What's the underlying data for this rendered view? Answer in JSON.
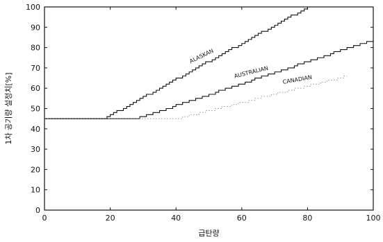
{
  "chart_data": {
    "type": "line",
    "title": "",
    "xlabel": "급탄량",
    "ylabel": "1차 공기량 설정치[%]",
    "xlim": [
      0,
      100
    ],
    "ylim": [
      0,
      100
    ],
    "x_ticks": [
      "0",
      "20",
      "40",
      "60",
      "80",
      "100"
    ],
    "y_ticks": [
      "0",
      "10",
      "20",
      "30",
      "40",
      "50",
      "60",
      "70",
      "80",
      "90",
      "100"
    ],
    "grid": false,
    "step_style": true,
    "series": [
      {
        "name": "ALASKAN",
        "color": "#111111",
        "x": [
          0,
          18,
          80
        ],
        "y": [
          45,
          45,
          100
        ]
      },
      {
        "name": "AUSTRALIAN",
        "color": "#111111",
        "x": [
          0,
          28,
          100
        ],
        "y": [
          45,
          45,
          84
        ]
      },
      {
        "name": "CANADIAN",
        "color": "#888888",
        "x": [
          0,
          40,
          92
        ],
        "y": [
          45,
          45,
          66
        ]
      }
    ]
  }
}
